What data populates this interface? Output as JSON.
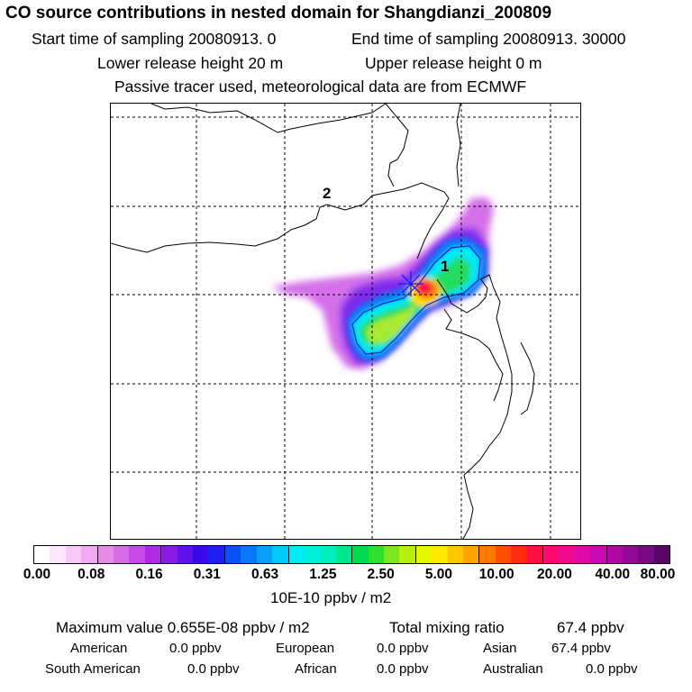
{
  "header": {
    "title": "CO  source contributions in nested domain for Shangdianzi_200809",
    "line_start": "Start time of sampling 20080913.     0",
    "line_end": "End time of sampling 20080913. 30000",
    "line_lower": "Lower release height   20 m",
    "line_upper": "Upper release height    0 m",
    "line_tracer": "Passive tracer used, meteorological data are from ECMWF"
  },
  "map": {
    "label_1": "1",
    "label_2": "2",
    "receptor_color": "#1a1aff"
  },
  "colorbar": {
    "colors": [
      "#ffffff",
      "#fde8fd",
      "#f8c8f8",
      "#f2a8f2",
      "#e68ae8",
      "#d86ce6",
      "#c84ae6",
      "#b02ae4",
      "#8c1ae6",
      "#6010e8",
      "#3a0ae8",
      "#1c20f0",
      "#0a50f4",
      "#0a78f6",
      "#0aa0f8",
      "#00c8f8",
      "#00ecf4",
      "#00f0dc",
      "#00eec0",
      "#00e68c",
      "#00dc50",
      "#30e030",
      "#78e820",
      "#b8f010",
      "#e4f800",
      "#ffe800",
      "#ffc800",
      "#ffa400",
      "#ff7a00",
      "#ff5000",
      "#ff2c10",
      "#ff1040",
      "#ff0a70",
      "#f00a90",
      "#e00aa8",
      "#c80ab0",
      "#b008a8",
      "#940898",
      "#780884",
      "#5a0668"
    ],
    "ticks": [
      "0.00",
      "0.08",
      "0.16",
      "0.31",
      "0.63",
      "1.25",
      "2.50",
      "5.00",
      "10.00",
      "20.00",
      "40.00",
      "80.00"
    ],
    "unit": "10E-10 ppbv / m2"
  },
  "stats": {
    "max_label": "Maximum value  0.655E-08 ppbv / m2",
    "total_label": "Total mixing ratio",
    "total_value": "67.4 ppbv",
    "regions": [
      {
        "name": "American",
        "value": "0.0 ppbv"
      },
      {
        "name": "European",
        "value": "0.0 ppbv"
      },
      {
        "name": "Asian",
        "value": "67.4 ppbv"
      },
      {
        "name": "South American",
        "value": "0.0 ppbv"
      },
      {
        "name": "African",
        "value": "0.0 ppbv"
      },
      {
        "name": "Australian",
        "value": "0.0 ppbv"
      }
    ]
  }
}
